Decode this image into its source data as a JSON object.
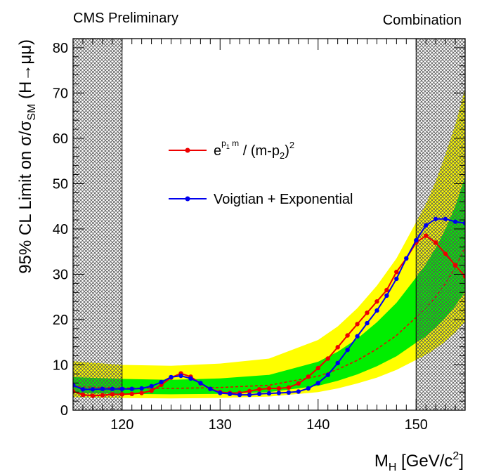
{
  "header": {
    "left": "CMS Preliminary",
    "right": "Combination"
  },
  "chart_data": {
    "type": "line",
    "xlabel": {
      "main": "M",
      "sub": "H",
      "rest": " [GeV/c",
      "sup": "2",
      "end": "]"
    },
    "ylabel": {
      "a": "95% CL Limit on σ/σ",
      "sub": "SM",
      "b": " (H→μμ)"
    },
    "xlim": [
      115,
      155
    ],
    "ylim": [
      0,
      82
    ],
    "x_major_ticks": [
      120,
      130,
      140,
      150
    ],
    "y_major_ticks": [
      0,
      10,
      20,
      30,
      40,
      50,
      60,
      70,
      80
    ],
    "x_tick_labels": [
      "120",
      "130",
      "140",
      "150"
    ],
    "y_tick_labels": [
      "0",
      "10",
      "20",
      "30",
      "40",
      "50",
      "60",
      "70",
      "80"
    ],
    "excluded_regions": [
      [
        115,
        120
      ],
      [
        150,
        155
      ]
    ],
    "legend": {
      "placement": "center-left",
      "entries": [
        {
          "series": 0,
          "label": {
            "base": "e",
            "exp1": "p",
            "exp1sub": "1",
            "exp2": " m",
            "mid": " / (m-p",
            "sub": "2",
            "end": ")",
            "sup": "2"
          }
        },
        {
          "series": 1,
          "label": {
            "text": "Voigtian + Exponential"
          }
        }
      ]
    },
    "bands": {
      "x": [
        115,
        120,
        125,
        130,
        135,
        140,
        142,
        144,
        146,
        148,
        150,
        151,
        152,
        153,
        154,
        155
      ],
      "expected": [
        5.2,
        4.9,
        4.8,
        5.0,
        5.5,
        7.5,
        9.0,
        11.0,
        13.5,
        16.5,
        20.5,
        22.5,
        25.0,
        28.0,
        31.5,
        36.0
      ],
      "one_sigma_low": [
        3.8,
        3.6,
        3.5,
        3.6,
        4.0,
        5.4,
        6.5,
        7.9,
        9.7,
        11.9,
        14.9,
        16.3,
        18.2,
        20.4,
        23.0,
        26.2
      ],
      "one_sigma_high": [
        7.3,
        6.9,
        6.7,
        7.0,
        7.8,
        10.7,
        12.9,
        15.8,
        19.4,
        23.7,
        29.3,
        32.2,
        35.8,
        40.0,
        45.0,
        51.5
      ],
      "two_sigma_low": [
        2.9,
        2.7,
        2.6,
        2.7,
        3.0,
        4.0,
        4.8,
        5.9,
        7.2,
        8.9,
        11.1,
        12.2,
        13.6,
        15.2,
        17.1,
        19.5
      ],
      "two_sigma_high": [
        10.8,
        10.0,
        9.8,
        10.3,
        11.4,
        15.5,
        18.5,
        22.5,
        27.5,
        33.5,
        41.5,
        45.5,
        50.5,
        56.5,
        63.0,
        71.0
      ],
      "colors": {
        "one_sigma": "#00ee00",
        "two_sigma": "#ffff00",
        "expected": "#ee0000"
      }
    },
    "series": [
      {
        "color": "#ee0000",
        "x": [
          115,
          116,
          117,
          118,
          119,
          120,
          121,
          122,
          123,
          124,
          125,
          126,
          127,
          128,
          129,
          130,
          131,
          132,
          133,
          134,
          135,
          136,
          137,
          138,
          139,
          140,
          141,
          142,
          143,
          144,
          145,
          146,
          147,
          148,
          149,
          150,
          151,
          152,
          153,
          154,
          155
        ],
        "y": [
          4.2,
          3.4,
          3.2,
          3.3,
          3.5,
          3.5,
          3.6,
          3.8,
          4.3,
          5.6,
          7.2,
          8.1,
          7.4,
          5.9,
          4.7,
          4.0,
          3.8,
          3.8,
          4.2,
          4.6,
          4.8,
          4.8,
          5.0,
          5.9,
          7.4,
          9.3,
          11.4,
          13.9,
          16.5,
          19.0,
          21.5,
          24.0,
          26.5,
          30.5,
          33.5,
          37.0,
          38.5,
          37.0,
          34.5,
          32.0,
          29.5
        ]
      },
      {
        "color": "#0000ee",
        "x": [
          115,
          116,
          117,
          118,
          119,
          120,
          121,
          122,
          123,
          124,
          125,
          126,
          127,
          128,
          129,
          130,
          131,
          132,
          133,
          134,
          135,
          136,
          137,
          138,
          139,
          140,
          141,
          142,
          143,
          144,
          145,
          146,
          147,
          148,
          149,
          150,
          151,
          152,
          153,
          154,
          155
        ],
        "y": [
          5.5,
          4.6,
          4.6,
          4.7,
          4.7,
          4.7,
          4.7,
          4.8,
          5.3,
          6.2,
          7.3,
          7.6,
          7.0,
          6.0,
          4.7,
          3.8,
          3.6,
          3.4,
          3.4,
          3.6,
          3.7,
          3.8,
          3.9,
          4.1,
          4.8,
          6.0,
          7.8,
          10.4,
          13.3,
          16.3,
          19.2,
          22.0,
          25.3,
          29.0,
          33.5,
          37.5,
          40.8,
          42.2,
          42.2,
          41.6,
          41.3
        ]
      }
    ]
  }
}
